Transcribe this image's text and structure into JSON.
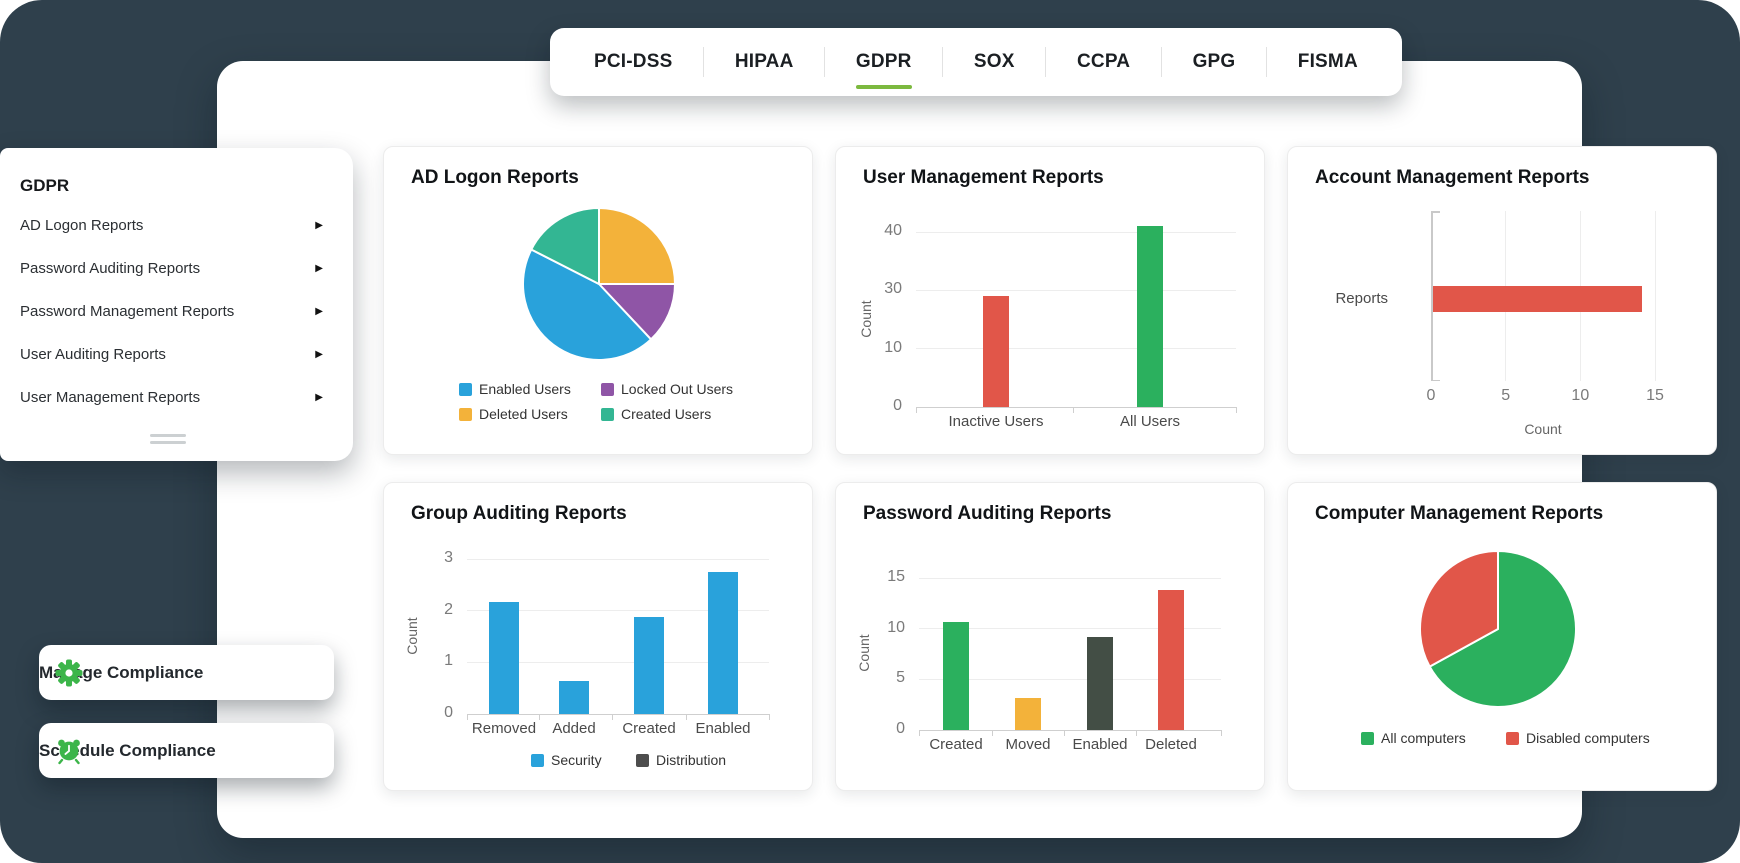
{
  "theme": {
    "backdrop": "#2f404c",
    "active_tab_underline": "#7cb93f",
    "icon_green": "#3cb54a",
    "chart_blue": "#29a2db",
    "chart_green": "#2bb05e",
    "chart_red": "#e15649",
    "chart_yellow": "#f3b23a",
    "chart_purple": "#8f55a6",
    "chart_teal": "#33b693",
    "chart_dark": "#434e45"
  },
  "icons": {
    "arrow_right": "▶"
  },
  "tabs": {
    "items": [
      {
        "label": "PCI-DSS",
        "active": false
      },
      {
        "label": "HIPAA",
        "active": false
      },
      {
        "label": "GDPR",
        "active": true
      },
      {
        "label": "SOX",
        "active": false
      },
      {
        "label": "CCPA",
        "active": false
      },
      {
        "label": "GPG",
        "active": false
      },
      {
        "label": "FISMA",
        "active": false
      }
    ]
  },
  "sidebar": {
    "title": "GDPR",
    "items": [
      {
        "label": "AD Logon Reports"
      },
      {
        "label": "Password Auditing Reports"
      },
      {
        "label": "Password Management Reports"
      },
      {
        "label": "User Auditing Reports"
      },
      {
        "label": "User Management Reports"
      }
    ]
  },
  "actions": {
    "manage_label": "Manage Compliance",
    "schedule_label": "Schedule Compliance"
  },
  "chart_data": [
    {
      "type": "pie",
      "title": "AD Logon Reports",
      "slices": [
        {
          "label": "Deleted Users",
          "value": 25,
          "color": "#f3b23a"
        },
        {
          "label": "Locked Out Users",
          "value": 13,
          "color": "#8f55a6"
        },
        {
          "label": "Enabled Users",
          "value": 44.5,
          "color": "#29a2db"
        },
        {
          "label": "Created Users",
          "value": 17.5,
          "color": "#33b693"
        }
      ],
      "legend": [
        {
          "label": "Enabled Users",
          "color": "#29a2db"
        },
        {
          "label": "Locked Out Users",
          "color": "#8f55a6"
        },
        {
          "label": "Deleted Users",
          "color": "#f3b23a"
        },
        {
          "label": "Created Users",
          "color": "#33b693"
        }
      ],
      "legend_position": "bottom"
    },
    {
      "type": "bar",
      "title": "User Management Reports",
      "ylabel": "Count",
      "yticks": [
        40,
        30,
        10,
        0
      ],
      "categories": [
        "Inactive Users",
        "All Users"
      ],
      "values": [
        28,
        41
      ],
      "bar_colors": [
        "#e15649",
        "#2bb05e"
      ],
      "grid": true
    },
    {
      "type": "bar",
      "orientation": "horizontal",
      "title": "Account Management Reports",
      "xlabel": "Count",
      "xticks": [
        0,
        5,
        10,
        15
      ],
      "xlim": [
        0,
        15
      ],
      "categories": [
        "Reports"
      ],
      "values": [
        14
      ],
      "bar_colors": [
        "#e15649"
      ],
      "grid": true
    },
    {
      "type": "bar",
      "title": "Group Auditing Reports",
      "ylabel": "Count",
      "yticks": [
        3,
        2,
        1,
        0
      ],
      "categories": [
        "Removed",
        "Added",
        "Created",
        "Enabled"
      ],
      "values": [
        2.17,
        0.64,
        1.87,
        2.74
      ],
      "bar_colors": [
        "#29a2db",
        "#29a2db",
        "#29a2db",
        "#29a2db"
      ],
      "legend": [
        {
          "label": "Security",
          "color": "#29a2db"
        },
        {
          "label": "Distribution",
          "color": "#4d4d4d"
        }
      ],
      "legend_position": "bottom",
      "grid": true
    },
    {
      "type": "bar",
      "title": "Password Auditing Reports",
      "ylabel": "Count",
      "yticks": [
        15,
        10,
        5,
        0
      ],
      "categories": [
        "Created",
        "Moved",
        "Enabled",
        "Deleted"
      ],
      "values": [
        10.7,
        3.2,
        9.2,
        13.8
      ],
      "bar_colors": [
        "#2bb05e",
        "#f3b23a",
        "#434e45",
        "#e15649"
      ],
      "grid": true
    },
    {
      "type": "pie",
      "title": "Computer Management Reports",
      "slices": [
        {
          "label": "All computers",
          "value": 67,
          "color": "#2bb05e"
        },
        {
          "label": "Disabled computers",
          "value": 33,
          "color": "#e15649"
        }
      ],
      "legend": [
        {
          "label": "All computers",
          "color": "#2bb05e"
        },
        {
          "label": "Disabled computers",
          "color": "#e15649"
        }
      ],
      "legend_position": "bottom"
    }
  ]
}
